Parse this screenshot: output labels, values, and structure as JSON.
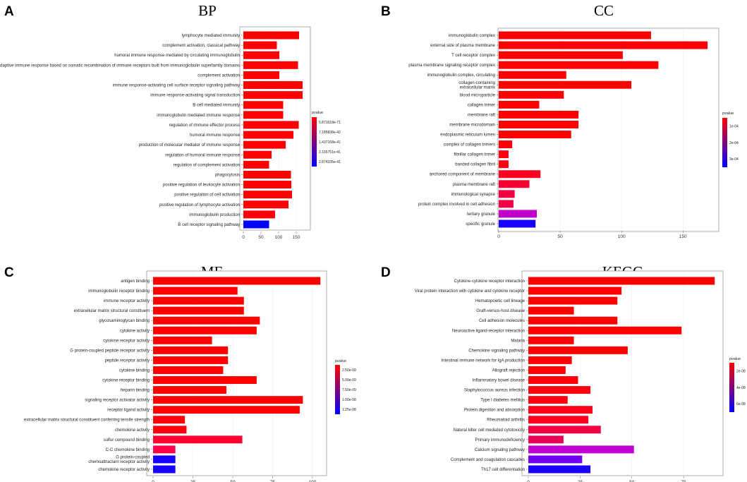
{
  "chart_data": [
    {
      "panel": "A",
      "title": "BP",
      "type": "bar",
      "orientation": "horizontal",
      "categories": [
        "lymphocyte mediated immunity",
        "complement activation, classical pathway",
        "humoral immune response mediated by circulating immunoglobulin",
        "adaptive immune response based on somatic recombination of immune receptors built from immunoglobulin superfamily domains",
        "complement activation",
        "immune response-activating cell surface receptor signaling pathway",
        "immune response-activating signal transduction",
        "B cell mediated immunity",
        "immunoglobulin mediated immune response",
        "regulation of immune effector process",
        "humoral immune response",
        "production of molecular mediator of immune response",
        "regulation of humoral immune response",
        "regulation of complement activation",
        "phagocytosis",
        "positive regulation of leukocyte activation",
        "positive regulation of cell activation",
        "positive regulation of lymphocyte activation",
        "immunoglobulin production",
        "B cell receptor signaling pathway"
      ],
      "values": [
        158,
        95,
        102,
        155,
        102,
        168,
        168,
        113,
        113,
        157,
        142,
        120,
        80,
        73,
        135,
        136,
        138,
        128,
        90,
        73
      ],
      "colors": [
        "#ff0000",
        "#ff0000",
        "#ff0000",
        "#ff0000",
        "#ff0000",
        "#ff0000",
        "#ff0000",
        "#ff0000",
        "#ff0000",
        "#ff0000",
        "#ff0000",
        "#ff0000",
        "#ff0000",
        "#ff0000",
        "#ff0000",
        "#ff0000",
        "#ff0000",
        "#ff0000",
        "#fe0008",
        "#0000ff"
      ],
      "xlim": [
        0,
        180
      ],
      "xticks": [
        "0",
        "50",
        "100",
        "150"
      ],
      "xtick_values": [
        0,
        50,
        100,
        150
      ],
      "legend": {
        "title": "pvalue",
        "labels": [
          "5.871618e-71",
          "7.185838e-42",
          "1.437168e-41",
          "2.155751e-41",
          "2.874335e-41"
        ],
        "colors": [
          "#ff0000",
          "#0000ff"
        ]
      }
    },
    {
      "panel": "B",
      "title": "CC",
      "type": "bar",
      "orientation": "horizontal",
      "categories": [
        "immunoglobulin complex",
        "external side of plasma membrane",
        "T cell receptor complex",
        "plasma membrane signaling receptor complex",
        "immunoglobulin complex, circulating",
        "collagen-containing\nextracellular matrix",
        "blood microparticle",
        "collagen trimer",
        "membrane raft",
        "membrane microdomain",
        "endoplasmic reticulum lumen",
        "complex of collagen trimers",
        "fibrillar collagen trimer",
        "banded collagen fibril",
        "anchored component of membrane",
        "plasma membrane raft",
        "immunological synapse",
        "protein complex involved in cell adhesion",
        "tertiary granule",
        "specific granule"
      ],
      "values": [
        124,
        170,
        101,
        130,
        55,
        108,
        53,
        33,
        65,
        65,
        59,
        11,
        8,
        8,
        34,
        25,
        13,
        12,
        31,
        30
      ],
      "colors": [
        "#ff0000",
        "#ff0000",
        "#ff0000",
        "#ff0000",
        "#ff0000",
        "#ff0000",
        "#ff0000",
        "#ff0000",
        "#ff0000",
        "#ff0000",
        "#ff0000",
        "#ff0008",
        "#ff0010",
        "#ff0010",
        "#ff0020",
        "#f50030",
        "#f00040",
        "#ee0045",
        "#c000c8",
        "#1800ff"
      ],
      "xlim": [
        0,
        178
      ],
      "xticks": [
        "0",
        "50",
        "100",
        "150"
      ],
      "xtick_values": [
        0,
        50,
        100,
        150
      ],
      "legend": {
        "title": "pvalue",
        "labels": [
          "1e-04",
          "2e-04",
          "3e-04"
        ],
        "colors": [
          "#ff0000",
          "#0000ff"
        ]
      }
    },
    {
      "panel": "C",
      "title": "MF",
      "type": "bar",
      "orientation": "horizontal",
      "categories": [
        "antigen binding",
        "immunoglobulin receptor binding",
        "immune receptor activity",
        "extracellular matrix structural constituent",
        "glycosaminoglycan binding",
        "cytokine activity",
        "cytokine receptor activity",
        "G protein-coupled peptide receptor activity",
        "peptide receptor activity",
        "cytokine binding",
        "cytokine receptor binding",
        "heparin binding",
        "signaling receptor activator activity",
        "receptor ligand activity",
        "extracellular matrix structural constituent conferring tensile strength",
        "chemokine activity",
        "sulfur compound binding",
        "C-C chemokine binding",
        "G protein-coupled\nchemoattractant receptor activity",
        "chemokine receptor activity"
      ],
      "values": [
        105,
        53,
        57,
        57,
        67,
        65,
        37,
        47,
        47,
        44,
        65,
        46,
        94,
        92,
        20,
        21,
        56,
        14,
        14,
        14
      ],
      "colors": [
        "#ff0000",
        "#ff0000",
        "#ff0000",
        "#ff0000",
        "#ff0000",
        "#ff0000",
        "#ff0000",
        "#ff0000",
        "#ff0000",
        "#ff0000",
        "#ff0000",
        "#ff0000",
        "#ff0000",
        "#ff0000",
        "#ff0008",
        "#ff0010",
        "#ff0030",
        "#ff0048",
        "#1800ff",
        "#1800ff"
      ],
      "xlim": [
        0,
        108
      ],
      "xticks": [
        "0",
        "25",
        "50",
        "75",
        "100"
      ],
      "xtick_values": [
        0,
        25,
        50,
        75,
        100
      ],
      "legend": {
        "title": "pvalue",
        "labels": [
          "2.50e-09",
          "5.00e-09",
          "7.50e-09",
          "1.00e-08",
          "1.25e-08"
        ],
        "colors": [
          "#ff0000",
          "#0000ff"
        ]
      }
    },
    {
      "panel": "D",
      "title": "KEGG",
      "type": "bar",
      "orientation": "horizontal",
      "categories": [
        "Cytokine-cytokine receptor interaction",
        "Viral protein interaction with cytokine and cytokine receptor",
        "Hematopoietic cell lineage",
        "Graft-versus-host disease",
        "Cell adhesion molecules",
        "Neuroactive ligand-receptor interaction",
        "Malaria",
        "Chemokine signaling pathway",
        "Intestinal immune network for IgA production",
        "Allograft rejection",
        "Inflammatory bowel disease",
        "Staphylococcus aureus infection",
        "Type I diabetes mellitus",
        "Protein digestion and absorption",
        "Rheumatoid arthritis",
        "Natural killer cell mediated cytotoxicity",
        "Primary immunodeficiency",
        "Calcium signaling pathway",
        "Complement and coagulation cascades",
        "Th17 cell differentiation"
      ],
      "values": [
        90,
        45,
        43,
        22,
        43,
        74,
        22,
        48,
        21,
        18,
        24,
        30,
        19,
        31,
        29,
        35,
        17,
        51,
        26,
        30
      ],
      "colors": [
        "#ff0000",
        "#ff0000",
        "#ff0000",
        "#ff0000",
        "#ff0000",
        "#ff0000",
        "#ff0000",
        "#ff0000",
        "#ff0000",
        "#ff0000",
        "#ff0008",
        "#ff0010",
        "#ff0010",
        "#ff0018",
        "#ff0020",
        "#f00040",
        "#e80058",
        "#c000d0",
        "#7000f0",
        "#1800ff"
      ],
      "xlim": [
        0,
        93
      ],
      "xticks": [
        "0",
        "25",
        "50",
        "75"
      ],
      "xtick_values": [
        0,
        25,
        50,
        75
      ],
      "legend": {
        "title": "pvalue",
        "labels": [
          "2e-08",
          "4e-08",
          "6e-08"
        ],
        "colors": [
          "#ff0000",
          "#0000ff"
        ]
      }
    }
  ]
}
